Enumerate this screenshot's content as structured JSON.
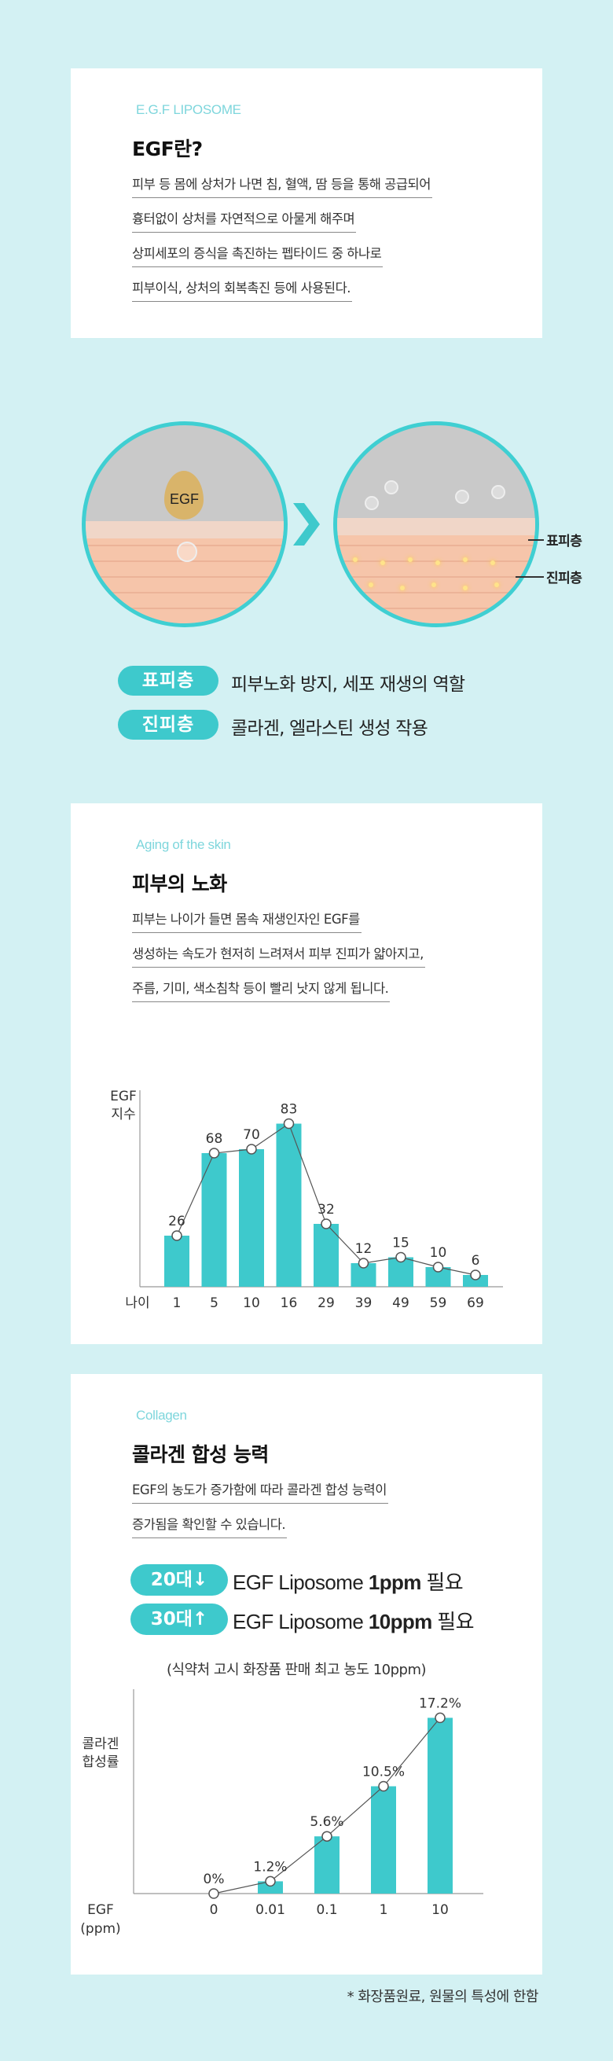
{
  "sec1": {
    "eyebrow": "E.G.F LIPOSOME",
    "title": "EGF란?",
    "lines": [
      "피부 등 몸에 상처가 나면 침, 혈액, 땀 등을 통해 공급되어",
      "흉터없이 상처를 자연적으로 아물게 해주며",
      "상피세포의 증식을 촉진하는 펩타이드 중 하나로",
      "피부이식, 상처의 회복촉진 등에 사용된다."
    ]
  },
  "sec2": {
    "drop_label": "EGF",
    "label_epidermis": "표피층",
    "label_dermis": "진피층",
    "pill1": "표피층",
    "pill1_text": "피부노화 방지, 세포 재생의 역할",
    "pill2": "진피층",
    "pill2_text": "콜라겐, 엘라스틴 생성 작용",
    "accent": "#3ec9cc"
  },
  "sec3": {
    "eyebrow": "Aging of the skin",
    "title": "피부의 노화",
    "lines": [
      "피부는 나이가 들면 몸속 재생인자인 EGF를",
      "생성하는 속도가 현저히 느려져서 피부 진피가 얇아지고,",
      "주름, 기미, 색소침착 등이 빨리 낫지 않게 됩니다."
    ]
  },
  "sec4": {
    "eyebrow": "Collagen",
    "title": "콜라겐 합성 능력",
    "lines": [
      "EGF의 농도가 증가함에 따라 콜라겐 합성 능력이",
      "증가됨을 확인할 수 있습니다."
    ],
    "pill_a": "20대↓",
    "pill_a_pre": "EGF Liposome ",
    "pill_a_bold": "1ppm",
    "pill_a_post": " 필요",
    "pill_b": "30대↑",
    "pill_b_pre": "EGF Liposome ",
    "pill_b_bold": "10ppm",
    "pill_b_post": " 필요",
    "note": "(식약처 고시 화장품 판매 최고 농도 10ppm)"
  },
  "footnote": "* 화장품원료, 원물의 특성에 한함",
  "chart_data": [
    {
      "type": "bar",
      "xlabel": "나이",
      "ylabel": [
        "EGF",
        "지수"
      ],
      "categories": [
        "1",
        "5",
        "10",
        "16",
        "29",
        "39",
        "49",
        "59",
        "69"
      ],
      "values": [
        26,
        68,
        70,
        83,
        32,
        12,
        15,
        10,
        6
      ],
      "ylim": [
        0,
        100
      ],
      "data_labels": [
        "26",
        "68",
        "70",
        "83",
        "32",
        "12",
        "15",
        "10",
        "6"
      ],
      "overlay_line": true,
      "color": "#3ec9cc"
    },
    {
      "type": "bar",
      "xlabel": [
        "EGF",
        "(ppm)"
      ],
      "ylabel": [
        "콜라겐",
        "합성률"
      ],
      "categories": [
        "0",
        "0.01",
        "0.1",
        "1",
        "10"
      ],
      "values": [
        0,
        1.2,
        5.6,
        10.5,
        17.2
      ],
      "ylim": [
        0,
        20
      ],
      "data_labels": [
        "0%",
        "1.2%",
        "5.6%",
        "10.5%",
        "17.2%"
      ],
      "overlay_line": true,
      "color": "#3ec9cc"
    }
  ]
}
